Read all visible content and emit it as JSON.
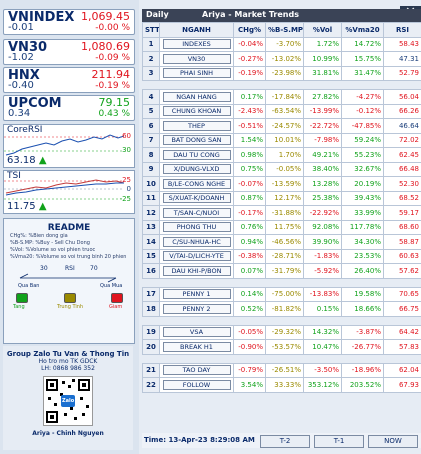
{
  "indices": [
    {
      "name": "VNINDEX",
      "value": "1,069.45",
      "change": "-0.01",
      "pct": "-0.00 %"
    },
    {
      "name": "VN30",
      "value": "1,080.69",
      "change": "-1.02",
      "pct": "-0.09 %"
    },
    {
      "name": "HNX",
      "value": "211.94",
      "change": "-0.40",
      "pct": "-0.19 %"
    },
    {
      "name": "UPCOM",
      "value": "79.15",
      "change": "0.34",
      "pct": "0.43 %"
    }
  ],
  "corersi": {
    "title": "CoreRSI",
    "value": "63.18",
    "axis_hi": "60",
    "axis_lo": "30"
  },
  "tsi": {
    "title": "TSI",
    "value": "11.75",
    "axis_hi": "25",
    "axis_mid": "0",
    "axis_lo": "-25"
  },
  "readme": {
    "title": "README",
    "lines": [
      "CHg%: %Bien dong gia",
      "%B-S.MP: %Buy - Sell Chu Dong",
      "%Vol: %Volume so voi phien truoc",
      "%Vma20: %Volume so voi trung binh 20 phien"
    ],
    "rsi_label": "RSI",
    "rsi_30": "30",
    "rsi_70": "70",
    "qua_ban": "Qua Ban",
    "qua_mua": "Qua Mua",
    "tang": "Tang",
    "trung_tinh": "Trung Tinh",
    "giam": "Giam"
  },
  "group": {
    "title": "Group Zalo Tu Van & Thong Tin",
    "line1": "Ho tro mo TK GDCK",
    "line2": "LH: 0868 986 352",
    "qr_text": "Zalo",
    "author": "Ariya - Chinh Nguyen"
  },
  "header": {
    "daily": "Daily",
    "title": "Ariya  -  Market Trends"
  },
  "columns": [
    "STT",
    "NGANH",
    "CHg%",
    "%B-S.MP",
    "%Vol",
    "%Vma20",
    "RSI"
  ],
  "rows": [
    {
      "stt": "1",
      "n": "INDEXES",
      "chg": "-0.04%",
      "bs": "-3.70%",
      "vol": "1.72%",
      "vma": "14.72%",
      "rsi": "58.43"
    },
    {
      "stt": "2",
      "n": "VN30",
      "chg": "-0.27%",
      "bs": "-13.02%",
      "vol": "10.99%",
      "vma": "15.75%",
      "rsi": "47.31"
    },
    {
      "stt": "3",
      "n": "PHAI SINH",
      "chg": "-0.19%",
      "bs": "-23.98%",
      "vol": "31.81%",
      "vma": "31.47%",
      "rsi": "52.79"
    },
    {
      "gap": true
    },
    {
      "stt": "4",
      "n": "NGAN HANG",
      "chg": "0.17%",
      "bs": "-17.84%",
      "vol": "27.82%",
      "vma": "-4.27%",
      "rsi": "56.04"
    },
    {
      "stt": "5",
      "n": "CHUNG KHOAN",
      "chg": "-2.43%",
      "bs": "-63.54%",
      "vol": "-13.99%",
      "vma": "-0.12%",
      "rsi": "66.26"
    },
    {
      "stt": "6",
      "n": "THEP",
      "chg": "-0.51%",
      "bs": "-24.57%",
      "vol": "-22.72%",
      "vma": "-47.85%",
      "rsi": "46.64"
    },
    {
      "stt": "7",
      "n": "BAT DONG SAN",
      "chg": "1.54%",
      "bs": "10.01%",
      "vol": "-7.98%",
      "vma": "59.24%",
      "rsi": "72.02"
    },
    {
      "stt": "8",
      "n": "DAU TU CONG",
      "chg": "0.98%",
      "bs": "1.70%",
      "vol": "49.21%",
      "vma": "55.23%",
      "rsi": "62.45"
    },
    {
      "stt": "9",
      "n": "X/DUNG-VLXD",
      "chg": "0.75%",
      "bs": "-0.05%",
      "vol": "38.40%",
      "vma": "32.67%",
      "rsi": "66.48"
    },
    {
      "stt": "10",
      "n": "B/LE-CONG NGHE",
      "chg": "-0.07%",
      "bs": "-13.59%",
      "vol": "13.28%",
      "vma": "20.19%",
      "rsi": "52.30"
    },
    {
      "stt": "11",
      "n": "S/XUAT-K/DOANH",
      "chg": "0.87%",
      "bs": "12.17%",
      "vol": "25.38%",
      "vma": "39.43%",
      "rsi": "68.52"
    },
    {
      "stt": "12",
      "n": "T/SAN-C/NUOI",
      "chg": "-0.17%",
      "bs": "-31.88%",
      "vol": "-22.92%",
      "vma": "33.99%",
      "rsi": "59.17"
    },
    {
      "stt": "13",
      "n": "PHONG THU",
      "chg": "0.76%",
      "bs": "11.75%",
      "vol": "92.08%",
      "vma": "117.78%",
      "rsi": "68.60"
    },
    {
      "stt": "14",
      "n": "C/SU-NHUA-HC",
      "chg": "0.94%",
      "bs": "-46.56%",
      "vol": "39.90%",
      "vma": "34.30%",
      "rsi": "58.87"
    },
    {
      "stt": "15",
      "n": "V/TAI-D/LICH-YTE",
      "chg": "-0.38%",
      "bs": "-28.71%",
      "vol": "-1.83%",
      "vma": "23.53%",
      "rsi": "60.63"
    },
    {
      "stt": "16",
      "n": "DAU KHI-P/BON",
      "chg": "0.07%",
      "bs": "-31.79%",
      "vol": "-5.92%",
      "vma": "26.40%",
      "rsi": "57.62"
    },
    {
      "gap": true
    },
    {
      "stt": "17",
      "n": "PENNY 1",
      "chg": "0.14%",
      "bs": "-75.00%",
      "vol": "-13.83%",
      "vma": "19.58%",
      "rsi": "70.65"
    },
    {
      "stt": "18",
      "n": "PENNY 2",
      "chg": "0.52%",
      "bs": "-81.82%",
      "vol": "0.15%",
      "vma": "18.66%",
      "rsi": "66.75"
    },
    {
      "gap": true
    },
    {
      "stt": "19",
      "n": "VSA",
      "chg": "-0.05%",
      "bs": "-29.32%",
      "vol": "14.32%",
      "vma": "-3.87%",
      "rsi": "64.42"
    },
    {
      "stt": "20",
      "n": "BREAK H1",
      "chg": "-0.90%",
      "bs": "-53.57%",
      "vol": "10.47%",
      "vma": "-26.77%",
      "rsi": "57.83"
    },
    {
      "gap": true
    },
    {
      "stt": "21",
      "n": "TAO DAY",
      "chg": "-0.79%",
      "bs": "-26.51%",
      "vol": "-3.50%",
      "vma": "-18.96%",
      "rsi": "62.04"
    },
    {
      "stt": "22",
      "n": "FOLLOW",
      "chg": "3.54%",
      "bs": "33.33%",
      "vol": "353.12%",
      "vma": "203.52%",
      "rsi": "67.93"
    }
  ],
  "footer": {
    "time": "Time: 13-Apr-23 8:29:08 AM",
    "b1": "T-2",
    "b2": "T-1",
    "b3": "NOW"
  },
  "colors": {
    "red": "#e0141e",
    "green": "#11a21b",
    "yellow": "#9a8a00",
    "rsi_high": "#e0141e",
    "rsi_low": "#1a3e7a"
  }
}
